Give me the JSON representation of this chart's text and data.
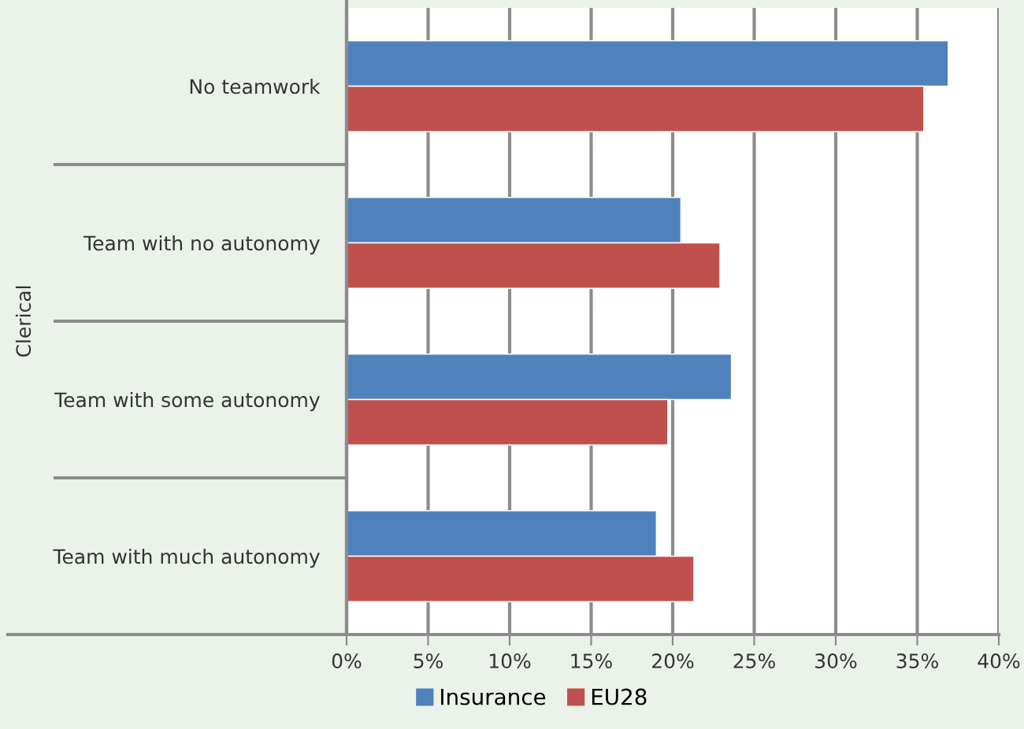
{
  "chart_data": {
    "type": "bar",
    "orientation": "horizontal",
    "ylabel": "Clerical",
    "categories": [
      "No teamwork",
      "Team with no autonomy",
      "Team with some autonomy",
      "Team with much autonomy"
    ],
    "series": [
      {
        "name": "Insurance",
        "color": "#4f81bd",
        "values": [
          36.9,
          20.5,
          23.6,
          19.0
        ]
      },
      {
        "name": "EU28",
        "color": "#c0504d",
        "values": [
          35.4,
          22.9,
          19.7,
          21.3
        ]
      }
    ],
    "xlim": [
      0,
      40
    ],
    "xticks": [
      {
        "value": 0,
        "label": "0%"
      },
      {
        "value": 5,
        "label": "5%"
      },
      {
        "value": 10,
        "label": "10%"
      },
      {
        "value": 15,
        "label": "15%"
      },
      {
        "value": 20,
        "label": "20%"
      },
      {
        "value": 25,
        "label": "25%"
      },
      {
        "value": 30,
        "label": "30%"
      },
      {
        "value": 35,
        "label": "35%"
      },
      {
        "value": 40,
        "label": "40%"
      }
    ],
    "grid": "x",
    "legend": "bottom"
  }
}
